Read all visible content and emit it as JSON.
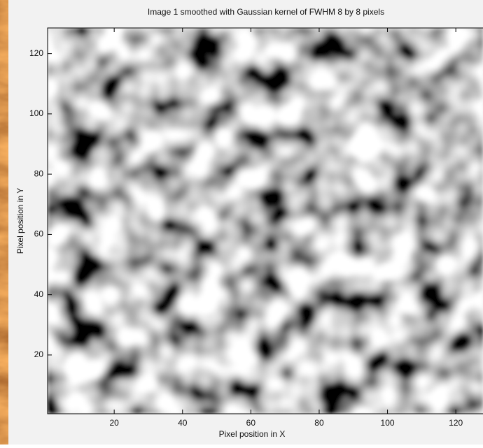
{
  "chart_data": {
    "type": "image",
    "title": "Image 1  smoothed with Gaussian kernel of FWHM 8 by 8 pixels",
    "xlabel": "Pixel position in X",
    "ylabel": "Pixel position in Y",
    "xlim": [
      0.5,
      128.5
    ],
    "ylim": [
      0.5,
      128.5
    ],
    "xticks": [
      20,
      40,
      60,
      80,
      100,
      120
    ],
    "yticks": [
      20,
      40,
      60,
      80,
      100,
      120
    ],
    "colormap": "gray"
  }
}
